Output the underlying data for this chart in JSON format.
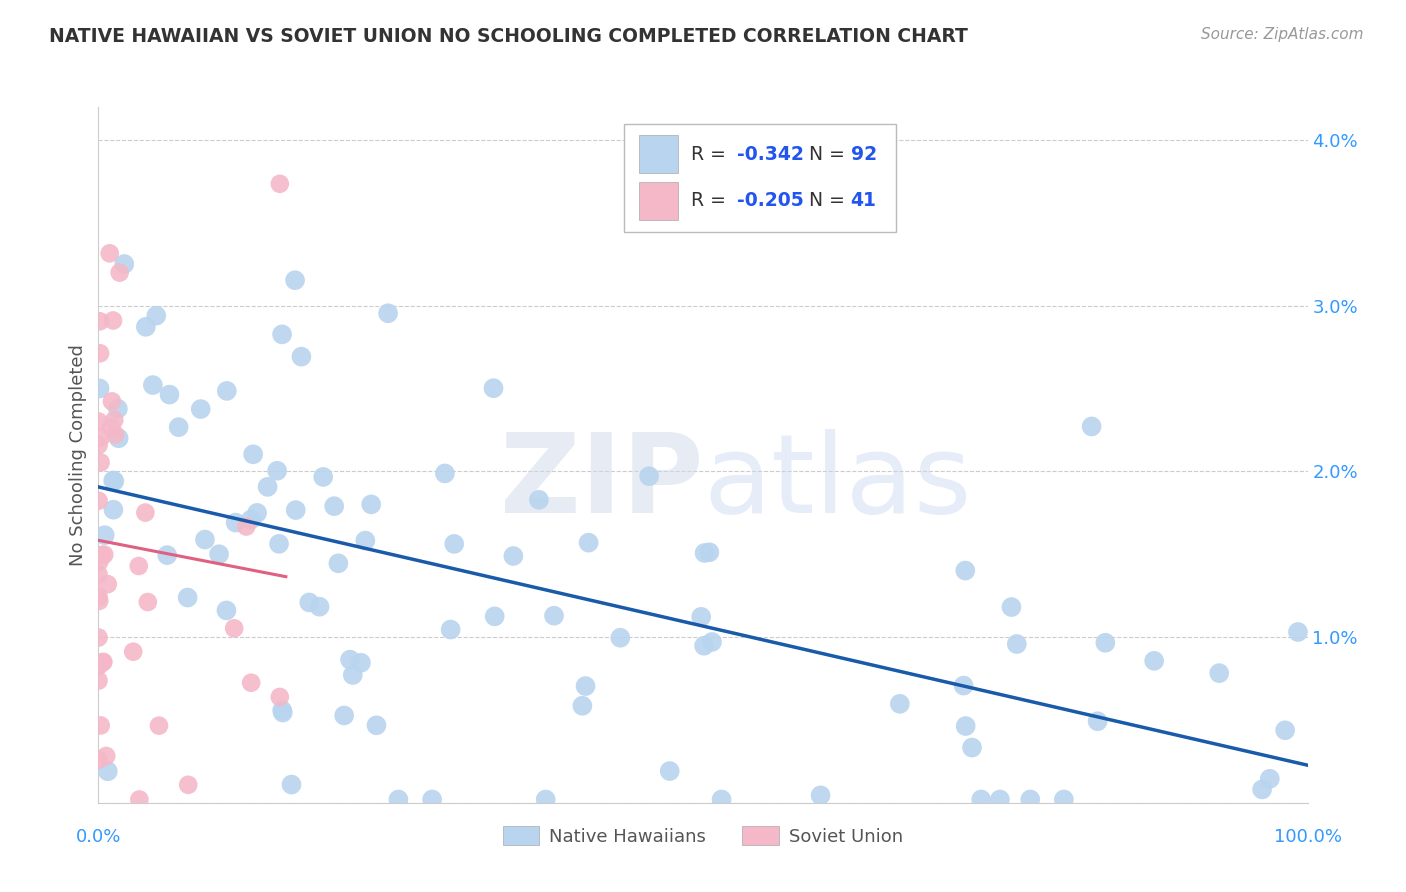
{
  "title": "NATIVE HAWAIIAN VS SOVIET UNION NO SCHOOLING COMPLETED CORRELATION CHART",
  "source": "Source: ZipAtlas.com",
  "ylabel": "No Schooling Completed",
  "y_ticks": [
    0.0,
    0.01,
    0.02,
    0.03,
    0.04
  ],
  "y_tick_labels": [
    "",
    "1.0%",
    "2.0%",
    "3.0%",
    "4.0%"
  ],
  "x_lim": [
    0.0,
    1.0
  ],
  "y_lim": [
    0.0,
    0.042
  ],
  "blue_color": "#b8d4ee",
  "pink_color": "#f4b8c8",
  "blue_line_color": "#1a5aaa",
  "pink_line_color": "#e06080",
  "blue_r": -0.342,
  "blue_n": 92,
  "pink_r": -0.205,
  "pink_n": 41,
  "watermark_zip": "ZIP",
  "watermark_atlas": "atlas",
  "background_color": "#ffffff",
  "grid_color": "#cccccc",
  "blue_line_start_y": 0.017,
  "blue_line_end_y": 0.004,
  "pink_line_start_y": 0.016,
  "pink_line_end_y": 0.009
}
